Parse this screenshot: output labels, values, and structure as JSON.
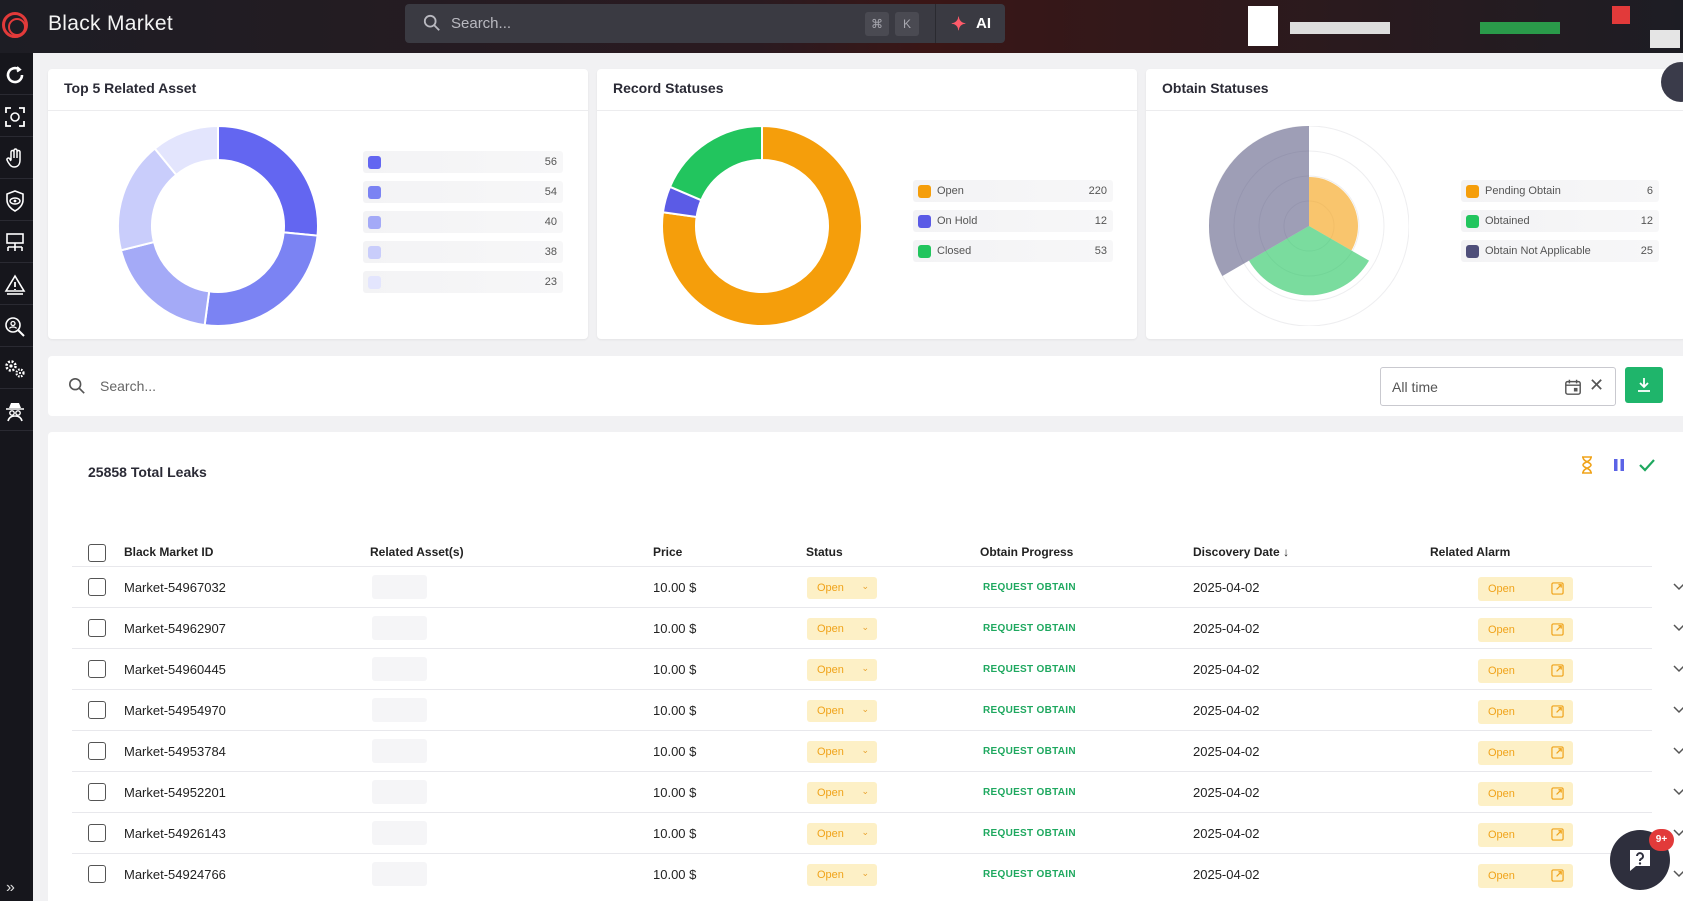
{
  "app": {
    "title": "Black Market"
  },
  "top_search": {
    "placeholder": "Search...",
    "kbd1": "⌘",
    "kbd2": "K",
    "ai_label": "AI"
  },
  "cards": {
    "assets": {
      "title": "Top 5 Related Asset",
      "legend": [
        {
          "value": "56",
          "color": "#6366f1"
        },
        {
          "value": "54",
          "color": "#7b83f3"
        },
        {
          "value": "40",
          "color": "#a4aaf7"
        },
        {
          "value": "38",
          "color": "#c9cdfb"
        },
        {
          "value": "23",
          "color": "#e3e5fd"
        }
      ]
    },
    "records": {
      "title": "Record Statuses",
      "legend": [
        {
          "name": "Open",
          "value": "220",
          "color": "#f59e0b"
        },
        {
          "name": "On Hold",
          "value": "12",
          "color": "#5b5be6"
        },
        {
          "name": "Closed",
          "value": "53",
          "color": "#22c55e"
        }
      ]
    },
    "obtain": {
      "title": "Obtain Statuses",
      "legend": [
        {
          "name": "Pending Obtain",
          "value": "6",
          "color": "#f59e0b"
        },
        {
          "name": "Obtained",
          "value": "12",
          "color": "#22c55e"
        },
        {
          "name": "Obtain Not Applicable",
          "value": "25",
          "color": "#4f4f7a"
        }
      ]
    }
  },
  "filter": {
    "placeholder": "Search...",
    "date_range": "All time"
  },
  "table": {
    "total": "25858 Total Leaks",
    "headers": {
      "id": "Black Market ID",
      "assets": "Related Asset(s)",
      "price": "Price",
      "status": "Status",
      "progress": "Obtain Progress",
      "date": "Discovery Date",
      "alarm": "Related Alarm"
    },
    "sort_arrow": "↓",
    "rows": [
      {
        "id": "Market-54967032",
        "price": "10.00 $",
        "status": "Open",
        "progress": "REQUEST OBTAIN",
        "date": "2025-04-02",
        "alarm": "Open"
      },
      {
        "id": "Market-54962907",
        "price": "10.00 $",
        "status": "Open",
        "progress": "REQUEST OBTAIN",
        "date": "2025-04-02",
        "alarm": "Open"
      },
      {
        "id": "Market-54960445",
        "price": "10.00 $",
        "status": "Open",
        "progress": "REQUEST OBTAIN",
        "date": "2025-04-02",
        "alarm": "Open"
      },
      {
        "id": "Market-54954970",
        "price": "10.00 $",
        "status": "Open",
        "progress": "REQUEST OBTAIN",
        "date": "2025-04-02",
        "alarm": "Open"
      },
      {
        "id": "Market-54953784",
        "price": "10.00 $",
        "status": "Open",
        "progress": "REQUEST OBTAIN",
        "date": "2025-04-02",
        "alarm": "Open"
      },
      {
        "id": "Market-54952201",
        "price": "10.00 $",
        "status": "Open",
        "progress": "REQUEST OBTAIN",
        "date": "2025-04-02",
        "alarm": "Open"
      },
      {
        "id": "Market-54926143",
        "price": "10.00 $",
        "status": "Open",
        "progress": "REQUEST OBTAIN",
        "date": "2025-04-02",
        "alarm": "Open"
      },
      {
        "id": "Market-54924766",
        "price": "10.00 $",
        "status": "Open",
        "progress": "REQUEST OBTAIN",
        "date": "2025-04-02",
        "alarm": "Open"
      }
    ]
  },
  "chat_badge": "9+",
  "chart_data": [
    {
      "type": "pie",
      "title": "Top 5 Related Asset",
      "values": [
        56,
        54,
        40,
        38,
        23
      ],
      "colors": [
        "#6366f1",
        "#7b83f3",
        "#a4aaf7",
        "#c9cdfb",
        "#e3e5fd"
      ]
    },
    {
      "type": "pie",
      "title": "Record Statuses",
      "categories": [
        "Open",
        "On Hold",
        "Closed"
      ],
      "values": [
        220,
        12,
        53
      ],
      "colors": [
        "#f59e0b",
        "#5b5be6",
        "#22c55e"
      ]
    },
    {
      "type": "pie",
      "title": "Obtain Statuses",
      "categories": [
        "Pending Obtain",
        "Obtained",
        "Obtain Not Applicable"
      ],
      "values": [
        6,
        12,
        25
      ],
      "colors": [
        "#f59e0b",
        "#22c55e",
        "#4f4f7a"
      ]
    }
  ]
}
